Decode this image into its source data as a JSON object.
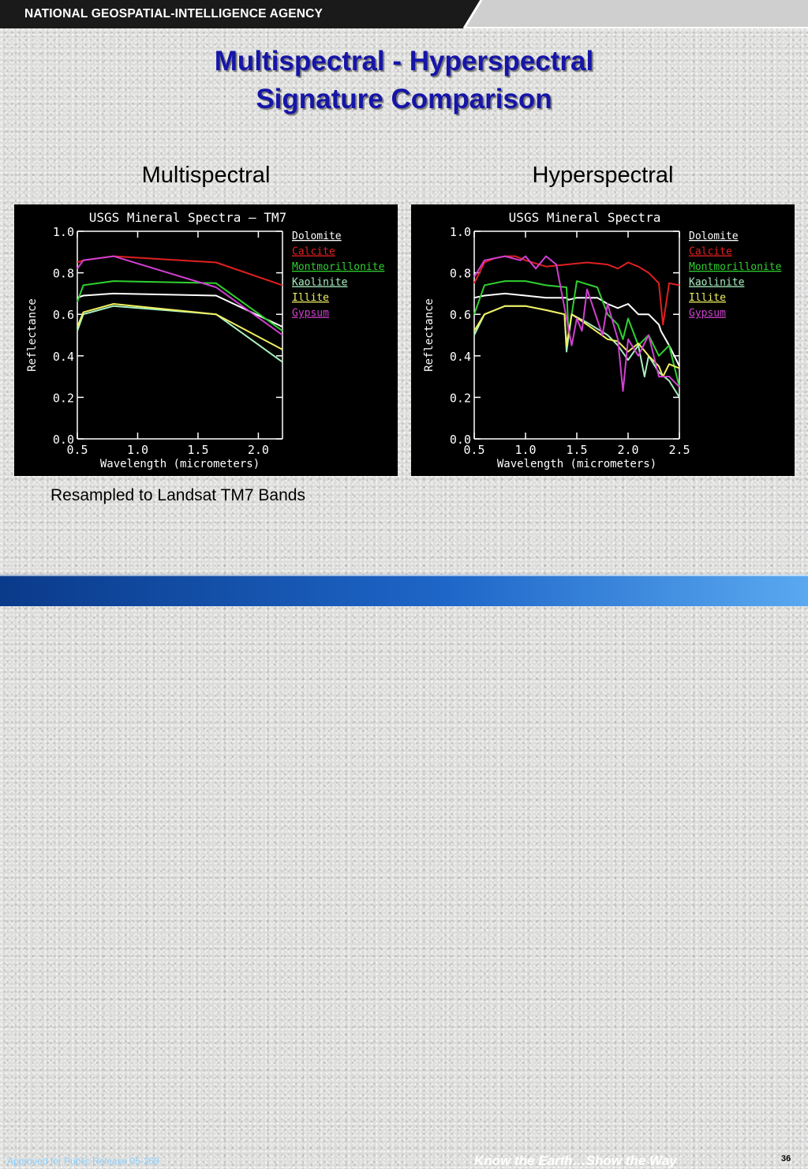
{
  "header": {
    "agency": "NATIONAL GEOSPATIAL-INTELLIGENCE AGENCY"
  },
  "slide": {
    "title_line1": "Multispectral - Hyperspectral",
    "title_line2": "Signature Comparison",
    "left_label": "Multispectral",
    "right_label": "Hyperspectral",
    "note": "Resampled to Landsat TM7 Bands"
  },
  "footer": {
    "approved": "Approved for Public Release 05-269",
    "tagline": "Know the Earth…Show the Way",
    "page": "36"
  },
  "colors": {
    "Dolomite": "#ffffff",
    "Calcite": "#e02020",
    "Montmorillonite": "#30d030",
    "Kaolinite": "#a8f0c0",
    "Illite": "#f0f060",
    "Gypsum": "#d040d0",
    "accent_title": "#1515a8"
  },
  "chart_data": [
    {
      "type": "line",
      "title": "USGS Mineral Spectra — TM7",
      "xlabel": "Wavelength (micrometers)",
      "ylabel": "Reflectance",
      "xlim": [
        0.5,
        2.2
      ],
      "ylim": [
        0.0,
        1.0
      ],
      "xticks": [
        "0.5",
        "1.0",
        "1.5",
        "2.0"
      ],
      "yticks": [
        "0.0",
        "0.2",
        "0.4",
        "0.6",
        "0.8",
        "1.0"
      ],
      "legend": "right",
      "series": [
        {
          "name": "Dolomite",
          "x": [
            0.5,
            0.55,
            0.8,
            1.65,
            2.2
          ],
          "y": [
            0.68,
            0.69,
            0.7,
            0.69,
            0.54
          ]
        },
        {
          "name": "Calcite",
          "x": [
            0.5,
            0.55,
            0.8,
            1.65,
            2.2
          ],
          "y": [
            0.85,
            0.86,
            0.88,
            0.85,
            0.74
          ]
        },
        {
          "name": "Montmorillonite",
          "x": [
            0.5,
            0.55,
            0.8,
            1.65,
            2.2
          ],
          "y": [
            0.66,
            0.74,
            0.76,
            0.75,
            0.52
          ]
        },
        {
          "name": "Kaolinite",
          "x": [
            0.5,
            0.55,
            0.8,
            1.65,
            2.2
          ],
          "y": [
            0.52,
            0.6,
            0.64,
            0.6,
            0.37
          ]
        },
        {
          "name": "Illite",
          "x": [
            0.5,
            0.55,
            0.8,
            1.65,
            2.2
          ],
          "y": [
            0.54,
            0.61,
            0.65,
            0.6,
            0.43
          ]
        },
        {
          "name": "Gypsum",
          "x": [
            0.5,
            0.55,
            0.8,
            1.65,
            2.2
          ],
          "y": [
            0.82,
            0.86,
            0.88,
            0.73,
            0.5
          ]
        }
      ]
    },
    {
      "type": "line",
      "title": "USGS Mineral Spectra",
      "xlabel": "Wavelength (micrometers)",
      "ylabel": "Reflectance",
      "xlim": [
        0.5,
        2.5
      ],
      "ylim": [
        0.0,
        1.0
      ],
      "xticks": [
        "0.5",
        "1.0",
        "1.5",
        "2.0",
        "2.5"
      ],
      "yticks": [
        "0.0",
        "0.2",
        "0.4",
        "0.6",
        "0.8",
        "1.0"
      ],
      "legend": "right",
      "series": [
        {
          "name": "Dolomite",
          "x": [
            0.5,
            0.6,
            0.8,
            1.0,
            1.2,
            1.4,
            1.42,
            1.5,
            1.7,
            1.8,
            1.9,
            2.0,
            2.1,
            2.2,
            2.3,
            2.32,
            2.4,
            2.5
          ],
          "y": [
            0.68,
            0.69,
            0.7,
            0.69,
            0.68,
            0.68,
            0.67,
            0.68,
            0.68,
            0.65,
            0.63,
            0.65,
            0.6,
            0.6,
            0.55,
            0.52,
            0.45,
            0.35
          ]
        },
        {
          "name": "Calcite",
          "x": [
            0.5,
            0.6,
            0.7,
            0.8,
            0.9,
            1.0,
            1.2,
            1.4,
            1.6,
            1.8,
            1.9,
            2.0,
            2.1,
            2.2,
            2.3,
            2.34,
            2.4,
            2.5
          ],
          "y": [
            0.75,
            0.85,
            0.87,
            0.88,
            0.88,
            0.86,
            0.83,
            0.84,
            0.85,
            0.84,
            0.82,
            0.85,
            0.83,
            0.8,
            0.75,
            0.55,
            0.75,
            0.74
          ]
        },
        {
          "name": "Montmorillonite",
          "x": [
            0.5,
            0.6,
            0.8,
            1.0,
            1.2,
            1.4,
            1.42,
            1.5,
            1.7,
            1.8,
            1.9,
            1.95,
            2.0,
            2.1,
            2.2,
            2.3,
            2.4,
            2.5
          ],
          "y": [
            0.6,
            0.74,
            0.76,
            0.76,
            0.74,
            0.73,
            0.5,
            0.76,
            0.73,
            0.6,
            0.55,
            0.48,
            0.58,
            0.45,
            0.5,
            0.4,
            0.45,
            0.25
          ]
        },
        {
          "name": "Kaolinite",
          "x": [
            0.5,
            0.6,
            0.8,
            1.0,
            1.2,
            1.38,
            1.4,
            1.45,
            1.6,
            1.8,
            1.9,
            2.0,
            2.1,
            2.16,
            2.2,
            2.3,
            2.4,
            2.5
          ],
          "y": [
            0.5,
            0.6,
            0.64,
            0.64,
            0.62,
            0.6,
            0.42,
            0.6,
            0.56,
            0.5,
            0.45,
            0.38,
            0.45,
            0.3,
            0.4,
            0.32,
            0.28,
            0.2
          ]
        },
        {
          "name": "Illite",
          "x": [
            0.5,
            0.6,
            0.8,
            1.0,
            1.2,
            1.38,
            1.4,
            1.45,
            1.6,
            1.8,
            1.9,
            2.0,
            2.1,
            2.2,
            2.3,
            2.34,
            2.4,
            2.5
          ],
          "y": [
            0.52,
            0.6,
            0.64,
            0.64,
            0.62,
            0.6,
            0.45,
            0.6,
            0.55,
            0.48,
            0.47,
            0.42,
            0.46,
            0.4,
            0.35,
            0.3,
            0.36,
            0.34
          ]
        },
        {
          "name": "Gypsum",
          "x": [
            0.5,
            0.6,
            0.8,
            0.95,
            1.0,
            1.1,
            1.2,
            1.3,
            1.45,
            1.5,
            1.55,
            1.6,
            1.75,
            1.8,
            1.9,
            1.95,
            2.0,
            2.1,
            2.2,
            2.3,
            2.4,
            2.5
          ],
          "y": [
            0.78,
            0.86,
            0.88,
            0.86,
            0.88,
            0.82,
            0.88,
            0.84,
            0.45,
            0.58,
            0.52,
            0.72,
            0.5,
            0.65,
            0.48,
            0.23,
            0.48,
            0.4,
            0.5,
            0.3,
            0.3,
            0.25
          ]
        }
      ]
    }
  ]
}
